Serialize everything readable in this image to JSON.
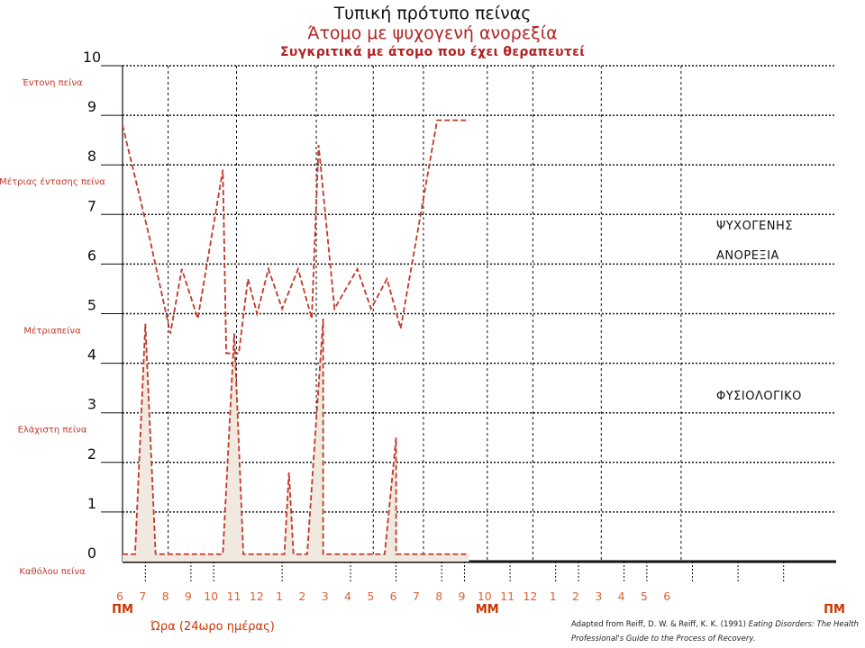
{
  "title": "Τυπική πρότυπο πείνας",
  "subtitle": "Άτομο με ψυχογενή ανορεξία",
  "subtitle2": "Συγκριτικά με άτομο που έχει θεραπευτεί",
  "credit": {
    "prefix": "Adapted from Reiff, D. W. & Reiff, K. K. (1991) ",
    "italic": "Eating Disorders: The Health Professional's Guide to the Process of Recovery."
  },
  "colors": {
    "accent": "#c0392b",
    "fill": "#efe9df",
    "grid": "#111111",
    "tick": "#e06030"
  },
  "chart_data": {
    "type": "line",
    "xlabel": "Ώρα (24ωρο ημέρας)",
    "ylabel": "",
    "ylim": [
      0,
      10
    ],
    "y_ticks": [
      "0",
      "1",
      "2",
      "3",
      "4",
      "5",
      "6",
      "7",
      "8",
      "9",
      "10"
    ],
    "x_ticks": [
      "6",
      "7",
      "8",
      "9",
      "10",
      "11",
      "12",
      "1",
      "2",
      "3",
      "4",
      "5",
      "6",
      "7",
      "8",
      "9",
      "10",
      "11",
      "12",
      "1",
      "2",
      "3",
      "4",
      "5",
      "6"
    ],
    "time_markers": [
      {
        "label": "ΠΜ",
        "at": "6"
      },
      {
        "label": "ΜΜ",
        "at": "8"
      },
      {
        "label": "ΠΜ",
        "at": "end"
      }
    ],
    "hunger_levels": [
      {
        "label": "Έντονη πείνα",
        "y": 10
      },
      {
        "label": "Μέτριας έντασης πείνα",
        "y": 8
      },
      {
        "label": "Μέτριαπείνα",
        "y": 5
      },
      {
        "label": "Ελάχιστη πείνα",
        "y": 3
      },
      {
        "label": "Καθόλου πείνα",
        "y": 0
      }
    ],
    "series": [
      {
        "name": "ΨΥΧΟΓΕΝΗΣ ΑΝΟΡΕΞΙΑ",
        "points": [
          [
            0,
            8.8
          ],
          [
            1.2,
            6.5
          ],
          [
            2.1,
            4.6
          ],
          [
            2.6,
            5.9
          ],
          [
            3.3,
            4.9
          ],
          [
            4.4,
            7.9
          ],
          [
            4.55,
            4.2
          ],
          [
            5.1,
            4.2
          ],
          [
            5.5,
            5.7
          ],
          [
            5.9,
            5.0
          ],
          [
            6.4,
            5.9
          ],
          [
            7.0,
            5.1
          ],
          [
            7.7,
            5.9
          ],
          [
            8.3,
            4.9
          ],
          [
            8.6,
            8.4
          ],
          [
            9.3,
            5.1
          ],
          [
            10.3,
            5.9
          ],
          [
            10.9,
            5.1
          ],
          [
            11.6,
            5.7
          ],
          [
            12.2,
            4.7
          ],
          [
            13.8,
            8.9
          ],
          [
            15.2,
            8.9
          ]
        ]
      },
      {
        "name": "ΦΥΣΙΟΛΟΓΙΚΟ",
        "points": [
          [
            0,
            0.15
          ],
          [
            0.55,
            0.15
          ],
          [
            1.0,
            4.8
          ],
          [
            1.45,
            0.15
          ],
          [
            4.4,
            0.15
          ],
          [
            4.9,
            4.6
          ],
          [
            5.3,
            0.15
          ],
          [
            7.1,
            0.15
          ],
          [
            7.3,
            1.8
          ],
          [
            7.5,
            0.15
          ],
          [
            8.1,
            0.15
          ],
          [
            8.8,
            4.9
          ],
          [
            8.8,
            0.15
          ],
          [
            11.5,
            0.15
          ],
          [
            12.0,
            2.5
          ],
          [
            12.0,
            0.15
          ],
          [
            15.2,
            0.15
          ]
        ]
      }
    ]
  }
}
